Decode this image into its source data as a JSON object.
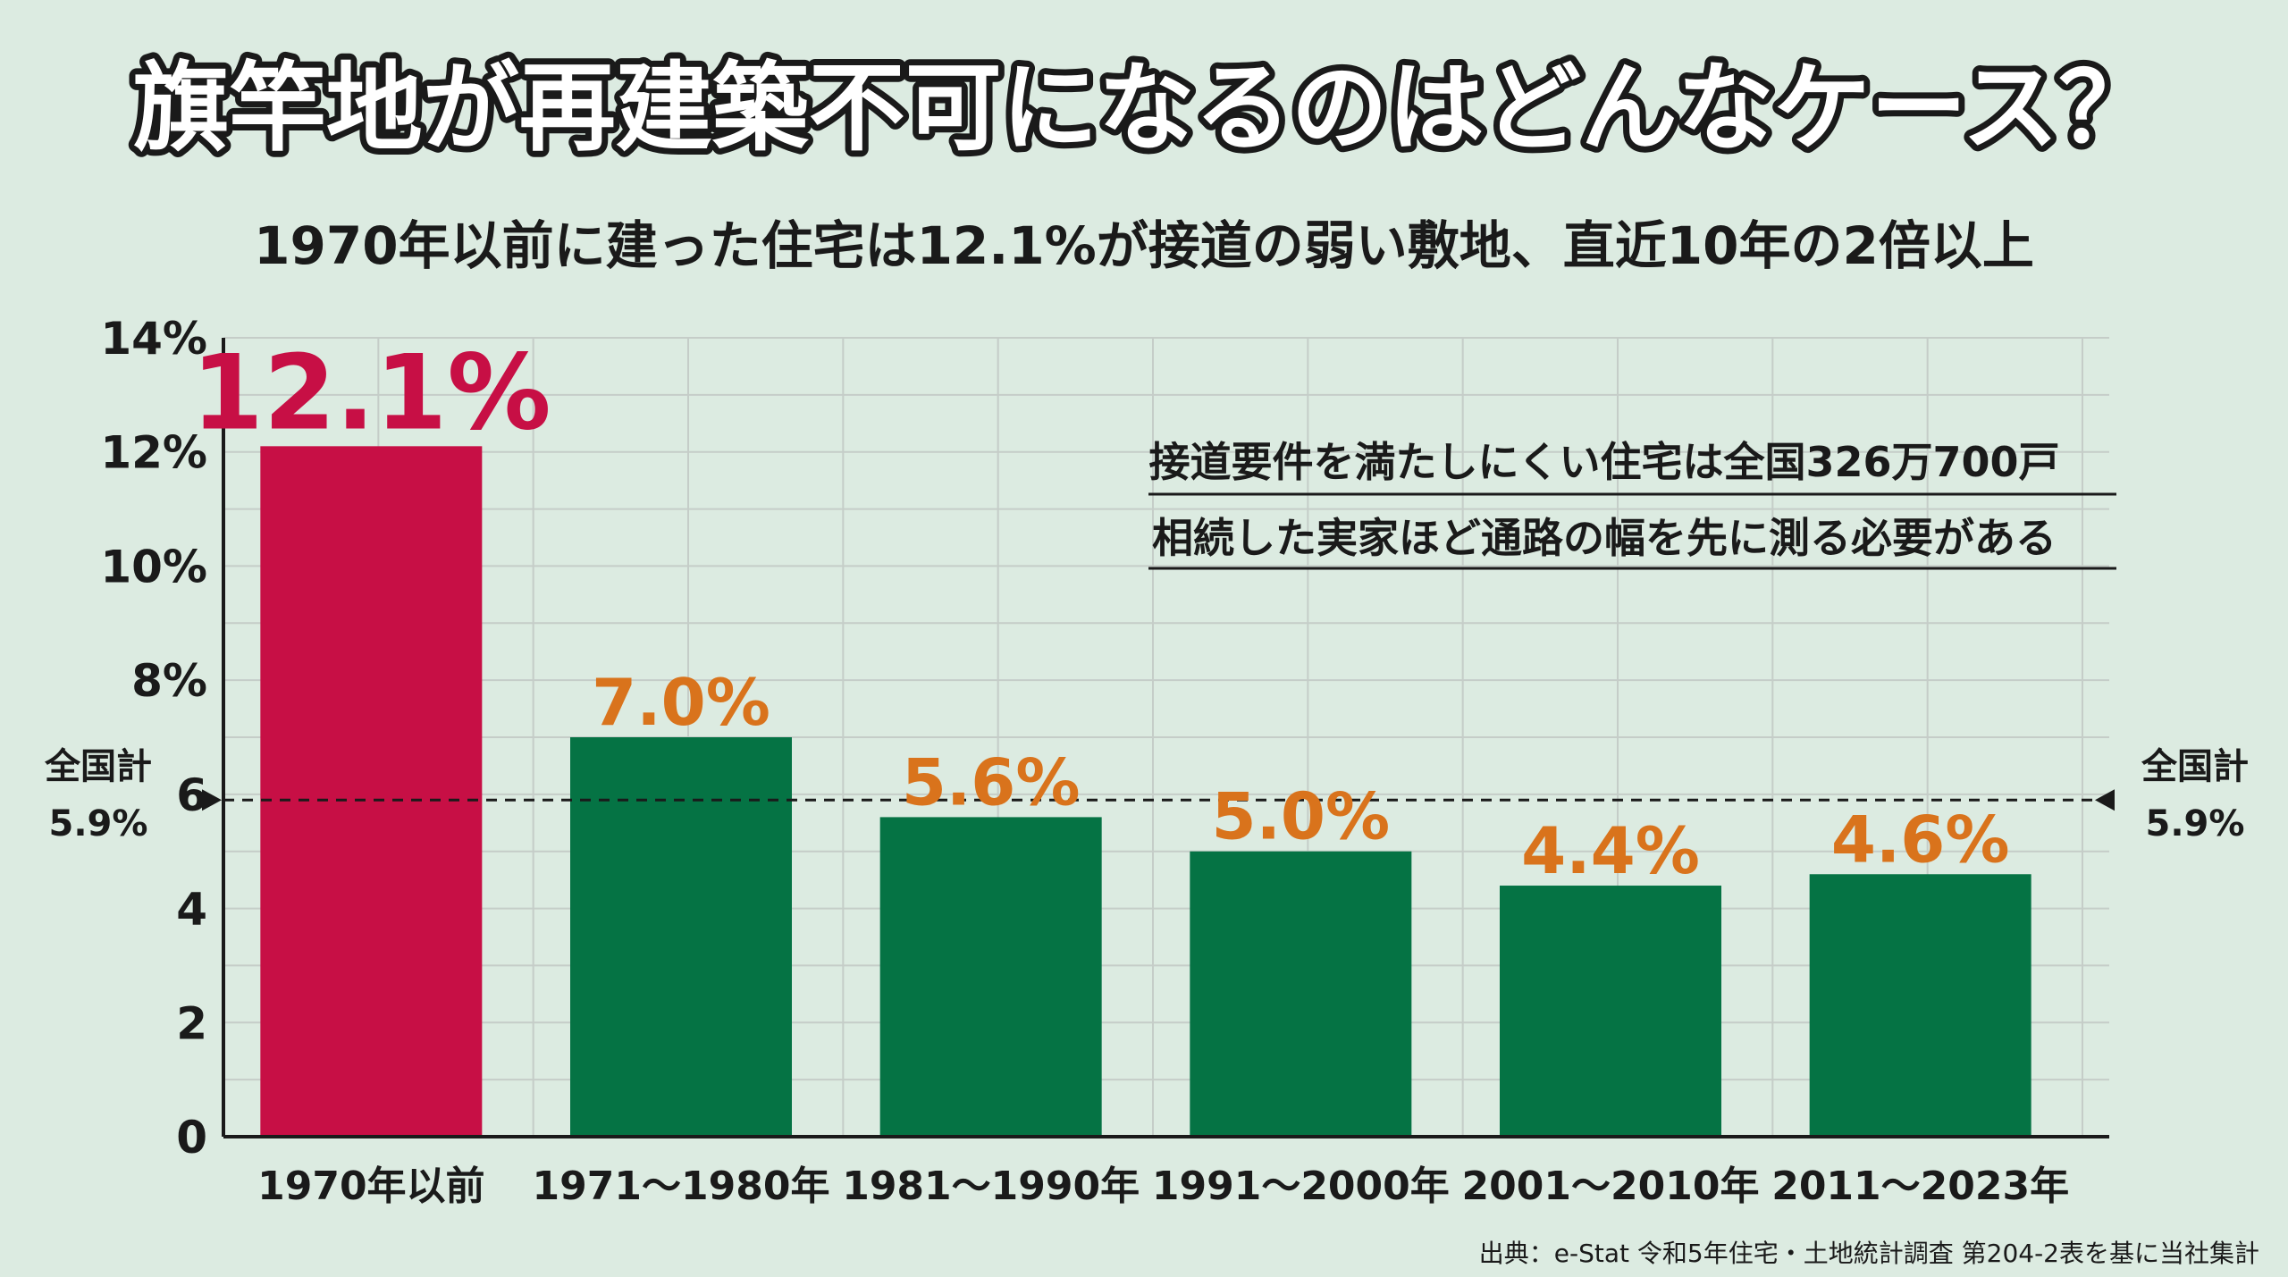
{
  "colors": {
    "background": "#dcebe1",
    "highlight": "#c70f45",
    "bar": "#057344",
    "label_orange": "#d9731c",
    "grid": "#c5cdc8"
  },
  "chart_data": {
    "type": "bar",
    "title": "旗竿地が再建築不可になるのはどんなケース？",
    "subtitle": "1970年以前に建った住宅は12.1%が接道の弱い敷地、直近10年の2倍以上",
    "categories": [
      "1970年以前",
      "1971～1980年",
      "1981～1990年",
      "1991～2000年",
      "2001～2010年",
      "2011～2023年"
    ],
    "values": [
      12.1,
      7.0,
      5.6,
      5.0,
      4.4,
      4.6
    ],
    "value_labels": [
      "12.1%",
      "7.0%",
      "5.6%",
      "5.0%",
      "4.4%",
      "4.6%"
    ],
    "highlight_index": 0,
    "ylim": [
      0,
      14
    ],
    "yticks": [
      0,
      2,
      4,
      6,
      8,
      10,
      12,
      14
    ],
    "ytick_labels": [
      "0",
      "2",
      "4",
      "6",
      "8%",
      "10%",
      "12%",
      "14%"
    ],
    "xlabel": "",
    "ylabel": "",
    "grid": true,
    "reference_line": {
      "value": 5.9,
      "label_top": "全国計",
      "label_bottom": "5.9%",
      "style": "dashed"
    },
    "annotations": [
      "接道要件を満たしにくい住宅は全国326万700戸",
      "相続した実家ほど通路の幅を先に測る必要がある"
    ],
    "source": "出典：e-Stat 令和5年住宅・土地統計調査 第204-2表を基に当社集計"
  }
}
